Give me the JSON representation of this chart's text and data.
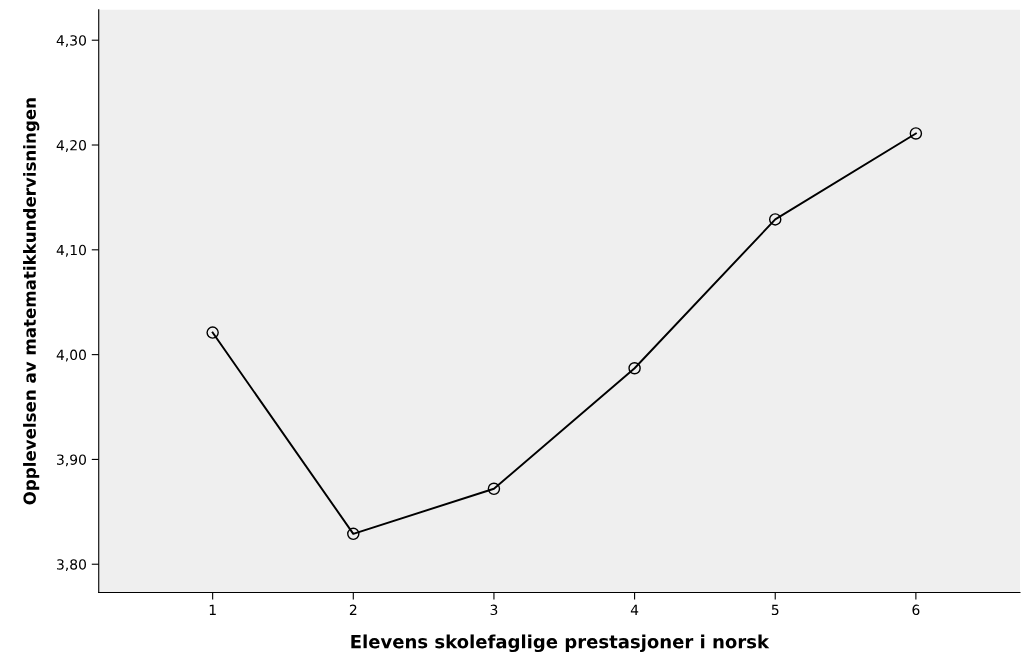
{
  "chart_data": {
    "type": "line",
    "xlabel": "Elevens skolefaglige prestasjoner i norsk",
    "ylabel": "Opplevelsen av matematikkundervisningen",
    "categories": [
      "1",
      "2",
      "3",
      "4",
      "5",
      "6"
    ],
    "series": [
      {
        "color": "#000000",
        "values": [
          4.021,
          3.829,
          3.872,
          3.987,
          4.129,
          4.211
        ]
      }
    ],
    "ylim": [
      3.773,
      4.329
    ],
    "yticks": [
      {
        "value": 3.8,
        "label": "3,80"
      },
      {
        "value": 3.9,
        "label": "3,90"
      },
      {
        "value": 4.0,
        "label": "4,00"
      },
      {
        "value": 4.1,
        "label": "4,10"
      },
      {
        "value": 4.2,
        "label": "4,20"
      },
      {
        "value": 4.3,
        "label": "4,30"
      }
    ],
    "grid": false,
    "legend": false,
    "marker": "circle",
    "line_style": "solid"
  }
}
